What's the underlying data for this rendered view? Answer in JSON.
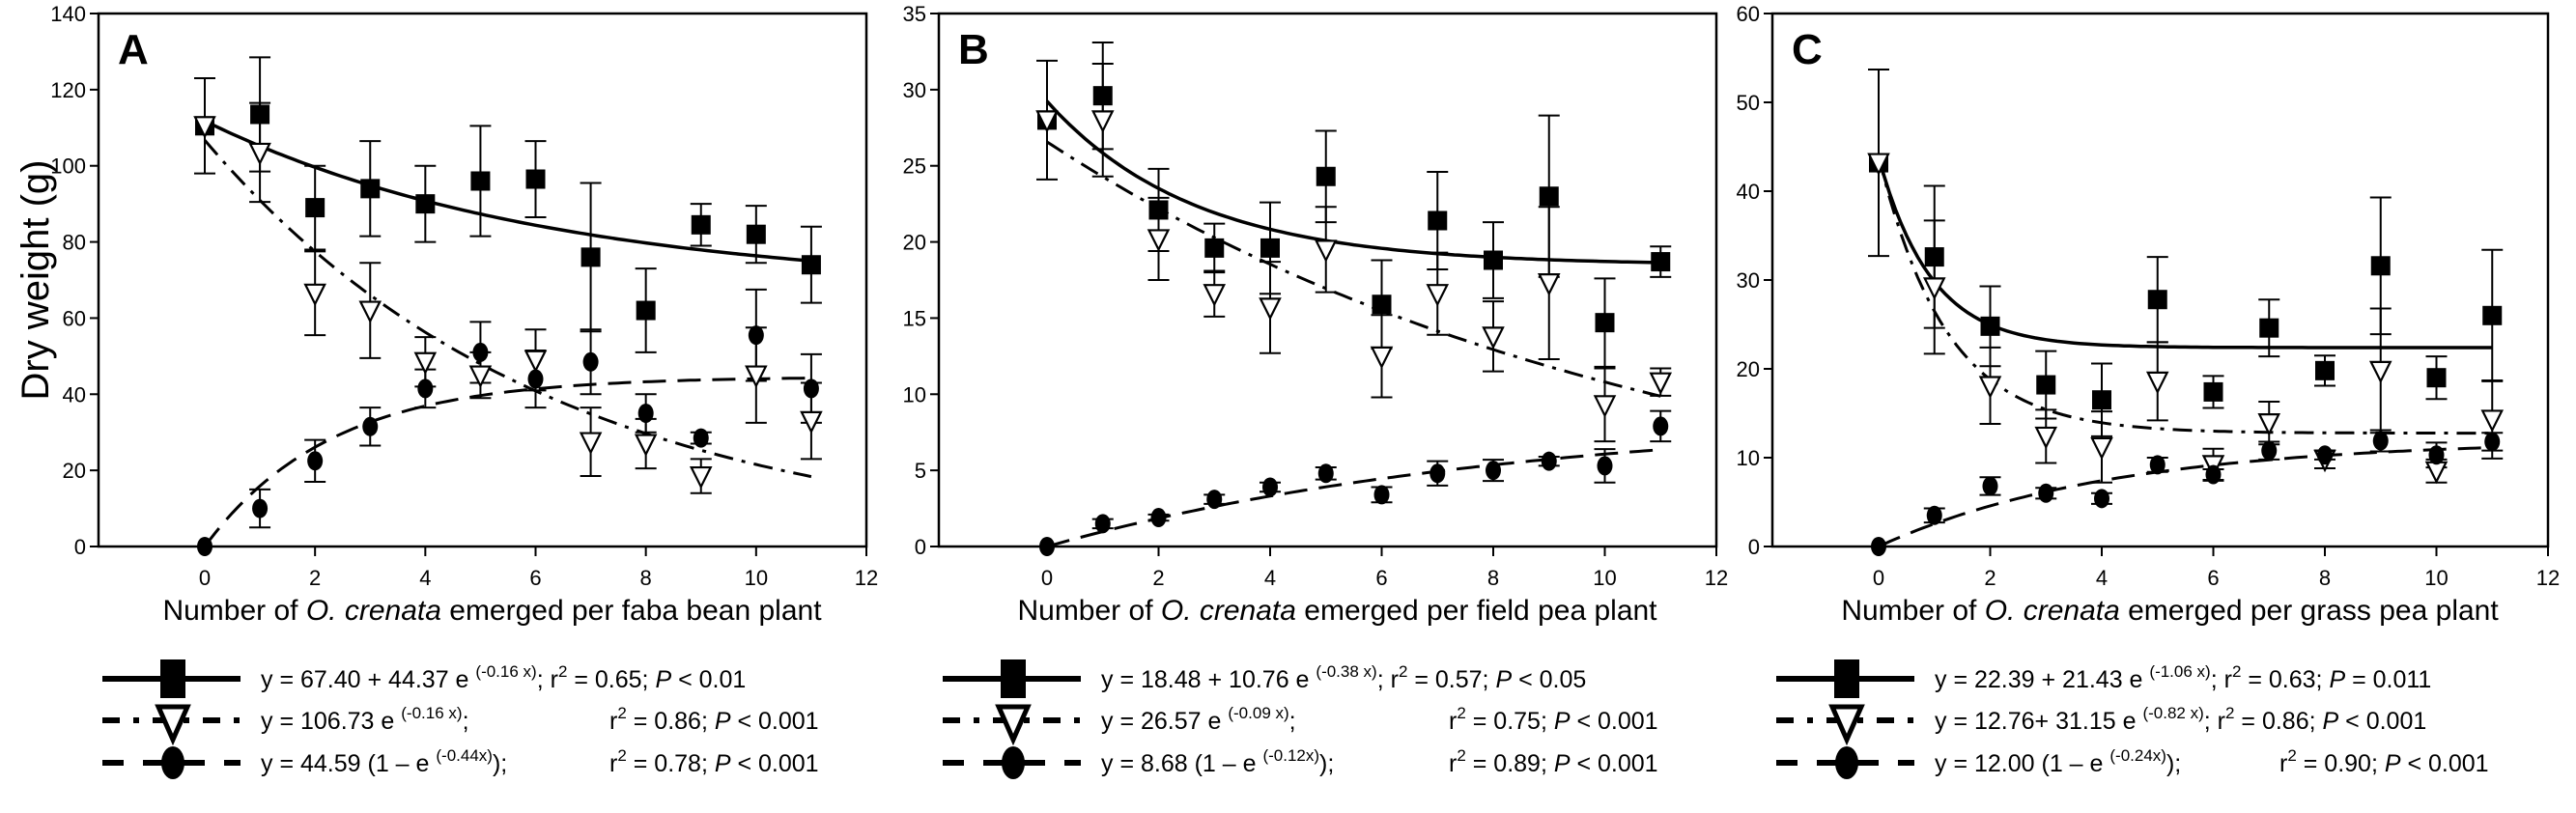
{
  "chart_data": [
    {
      "type": "scatter",
      "panel_label": "A",
      "ylabel": "Dry weight (g)",
      "xlabel_parts": [
        "Number of ",
        "O. crenata",
        " emerged per faba bean plant"
      ],
      "xlim": [
        -1.9,
        12
      ],
      "ylim": [
        0,
        140
      ],
      "xticks": [
        0,
        2,
        4,
        6,
        8,
        10,
        12
      ],
      "yticks": [
        0,
        20,
        40,
        60,
        80,
        100,
        120,
        140
      ],
      "x": [
        0,
        1,
        2,
        3,
        4,
        5,
        6,
        7,
        8,
        9,
        10,
        11
      ],
      "series": [
        {
          "name": "square",
          "marker": "square",
          "line": "solid",
          "values": [
            110.5,
            113.5,
            89,
            94,
            90,
            96,
            96.5,
            76,
            62,
            84.5,
            82,
            74
          ],
          "errors": [
            12.5,
            15,
            11,
            12.5,
            10,
            14.5,
            10,
            19.5,
            11,
            5.5,
            7.5,
            10
          ],
          "fit": {
            "a": 67.4,
            "b": 44.37,
            "k": -0.16,
            "form": "a+b*exp(kx)"
          },
          "legend": {
            "eq": "y = 67.40 + 44.37 e ",
            "exp": "(-0.16 x)",
            "tail": "; ",
            "r2": " = 0.65; ",
            "p": "< 0.01",
            "p_sym": "P",
            "p_rel": ""
          }
        },
        {
          "name": "triangle",
          "marker": "triangle",
          "line": "dashdot",
          "values": [
            110.5,
            103.5,
            66.5,
            62,
            48.5,
            45,
            49,
            27.5,
            27,
            18.5,
            45,
            33
          ],
          "errors": [
            0,
            13,
            11,
            12.5,
            6.5,
            6,
            8,
            9,
            6.5,
            4.5,
            12.5,
            10
          ],
          "fit": {
            "a": 0,
            "b": 106.73,
            "k": -0.16,
            "form": "b*exp(kx)"
          },
          "legend": {
            "eq": "y = 106.73 e ",
            "exp": "(-0.16 x)",
            "tail": ";",
            "r2": " = 0.86; ",
            "p": "< 0.001",
            "p_sym": "P",
            "p_rel": ""
          }
        },
        {
          "name": "circle",
          "marker": "circle",
          "line": "dashed",
          "values": [
            0,
            10,
            22.5,
            31.5,
            41.5,
            51,
            44,
            48.5,
            35,
            28.5,
            55.5,
            41.5
          ],
          "errors": [
            0,
            5,
            5.5,
            5,
            5,
            8,
            7.5,
            8.5,
            5,
            1.5,
            12,
            9
          ],
          "fit": {
            "a": 44.59,
            "k": -0.44,
            "form": "a*(1-exp(kx))"
          },
          "legend": {
            "eq": "y = 44.59 (1 – e ",
            "exp": "(-0.44x)",
            "tail": ");",
            "r2": " = 0.78; ",
            "p": "< 0.001",
            "p_sym": "P",
            "p_rel": ""
          }
        }
      ]
    },
    {
      "type": "scatter",
      "panel_label": "B",
      "xlabel_parts": [
        "Number of ",
        "O. crenata",
        " emerged per field pea plant"
      ],
      "xlim": [
        -1.9,
        12
      ],
      "ylim": [
        0,
        35
      ],
      "xticks": [
        0,
        2,
        4,
        6,
        8,
        10,
        12
      ],
      "yticks": [
        0,
        5,
        10,
        15,
        20,
        25,
        30,
        35
      ],
      "x": [
        0,
        1,
        2,
        3,
        4,
        5,
        6,
        7,
        8,
        9,
        10,
        11
      ],
      "series": [
        {
          "name": "square",
          "marker": "square",
          "line": "solid",
          "values": [
            28,
            29.6,
            22.1,
            19.6,
            19.6,
            24.3,
            15.9,
            21.4,
            18.8,
            23,
            14.7,
            18.7
          ],
          "errors": [
            3.9,
            3.5,
            2.7,
            1.6,
            3,
            3,
            2.9,
            3.2,
            2.5,
            5.3,
            2.9,
            1
          ],
          "fit": {
            "a": 18.48,
            "b": 10.76,
            "k": -0.38,
            "form": "a+b*exp(kx)"
          },
          "legend": {
            "eq": "y = 18.48 + 10.76 e ",
            "exp": "(-0.38 x)",
            "tail": "; ",
            "r2": " = 0.57; ",
            "p": "< 0.05",
            "p_sym": "P",
            "p_rel": ""
          }
        },
        {
          "name": "triangle",
          "marker": "triangle",
          "line": "dashdot",
          "values": [
            28,
            28,
            20.2,
            16.6,
            15.7,
            19.5,
            12.5,
            16.6,
            13.8,
            17.3,
            9.3,
            10.8
          ],
          "errors": [
            0,
            3.7,
            2.7,
            1.5,
            3,
            2.8,
            2.7,
            2.7,
            2.3,
            5,
            2.4,
            0.9
          ],
          "fit": {
            "a": 0,
            "b": 26.57,
            "k": -0.09,
            "form": "b*exp(kx)"
          },
          "legend": {
            "eq": "y = 26.57 e ",
            "exp": "(-0.09 x)",
            "tail": ";",
            "r2": " = 0.75; ",
            "p": "< 0.001",
            "p_sym": "P",
            "p_rel": ""
          }
        },
        {
          "name": "circle",
          "marker": "circle",
          "line": "dashed",
          "values": [
            0,
            1.5,
            1.9,
            3.1,
            3.9,
            4.8,
            3.4,
            4.8,
            5,
            5.6,
            5.3,
            7.9
          ],
          "errors": [
            0,
            0.3,
            0.2,
            0.3,
            0.3,
            0.4,
            0.5,
            0.8,
            0.7,
            0.3,
            1.1,
            1
          ],
          "fit": {
            "a": 8.68,
            "k": -0.12,
            "form": "a*(1-exp(kx))"
          },
          "legend": {
            "eq": "y = 8.68 (1 – e ",
            "exp": "(-0.12x)",
            "tail": ");",
            "r2": " = 0.89; ",
            "p": "< 0.001",
            "p_sym": "P",
            "p_rel": ""
          }
        }
      ]
    },
    {
      "type": "scatter",
      "panel_label": "C",
      "xlabel_parts": [
        "Number of ",
        "O. crenata",
        " emerged per grass pea plant"
      ],
      "xlim": [
        -1.9,
        12
      ],
      "ylim": [
        0,
        60
      ],
      "xticks": [
        0,
        2,
        4,
        6,
        8,
        10,
        12
      ],
      "yticks": [
        0,
        10,
        20,
        30,
        40,
        50,
        60
      ],
      "x": [
        0,
        1,
        2,
        3,
        4,
        5,
        6,
        7,
        8,
        9,
        10,
        11
      ],
      "series": [
        {
          "name": "square",
          "marker": "square",
          "line": "solid",
          "values": [
            43.2,
            32.6,
            24.8,
            18.2,
            16.5,
            27.8,
            17.4,
            24.6,
            19.8,
            31.6,
            19,
            26
          ],
          "errors": [
            10.5,
            8,
            4.5,
            3.8,
            4.1,
            4.8,
            1.8,
            3.2,
            1.7,
            7.7,
            2.4,
            7.4
          ],
          "fit": {
            "a": 22.39,
            "b": 21.43,
            "k": -1.06,
            "form": "a+b*exp(kx)"
          },
          "legend": {
            "eq": "y = 22.39 + 21.43 e ",
            "exp": "(-1.06 x)",
            "tail": "; ",
            "r2": " = 0.63; ",
            "p": "= 0.011",
            "p_sym": "P",
            "p_rel": ""
          }
        },
        {
          "name": "triangle",
          "marker": "triangle",
          "line": "dashdot",
          "values": [
            43.2,
            29.2,
            18.1,
            12.4,
            11.2,
            18.6,
            9.2,
            13.9,
            9.8,
            19.8,
            8.5,
            14.3
          ],
          "errors": [
            0,
            7.5,
            4.3,
            3,
            4,
            4.4,
            1.8,
            2.4,
            1,
            7,
            1.3,
            4.4
          ],
          "fit": {
            "a": 12.76,
            "b": 31.15,
            "k": -0.82,
            "form": "a+b*exp(kx)"
          },
          "legend": {
            "eq": "y = 12.76+ 31.15  e ",
            "exp": "(-0.82 x)",
            "tail": "; ",
            "r2": " = 0.86; ",
            "p": "< 0.001",
            "p_sym": "P",
            "p_rel": ""
          }
        },
        {
          "name": "circle",
          "marker": "circle",
          "line": "dashed",
          "values": [
            0,
            3.5,
            6.8,
            6,
            5.4,
            9.2,
            8.1,
            10.8,
            10.3,
            11.9,
            10.3,
            11.8
          ],
          "errors": [
            0,
            0.8,
            1,
            0.6,
            0.6,
            0.8,
            0.6,
            1,
            0.5,
            1.2,
            1.4,
            1
          ],
          "fit": {
            "a": 12.0,
            "k": -0.24,
            "form": "a*(1-exp(kx))"
          },
          "legend": {
            "eq": "y = 12.00 (1 – e ",
            "exp": "(-0.24x)",
            "tail": ");",
            "r2": " = 0.90; ",
            "p": "< 0.001",
            "p_sym": "P",
            "p_rel": ""
          }
        }
      ]
    }
  ]
}
